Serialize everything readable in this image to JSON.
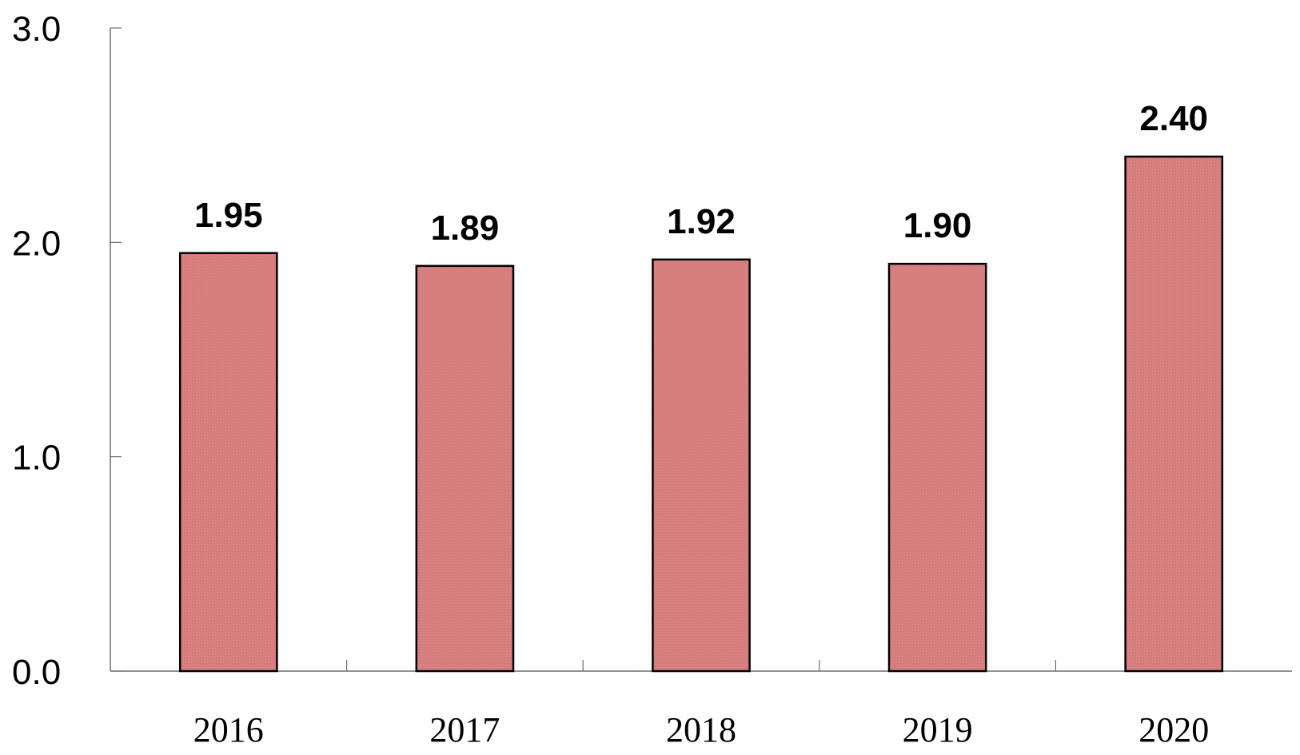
{
  "chart_data": {
    "type": "bar",
    "categories": [
      "2016",
      "2017",
      "2018",
      "2019",
      "2020"
    ],
    "values": [
      1.95,
      1.89,
      1.92,
      1.9,
      2.4
    ],
    "data_labels": [
      "1.95",
      "1.89",
      "1.92",
      "1.90",
      "2.40"
    ],
    "title": "",
    "xlabel": "",
    "ylabel": "",
    "ylim": [
      0,
      3.0
    ],
    "yticks": [
      "0.0",
      "1.0",
      "2.0",
      "3.0"
    ],
    "grid": false,
    "legend": "none",
    "bar_color": "#d98080",
    "bar_edge_color": "#000000"
  }
}
